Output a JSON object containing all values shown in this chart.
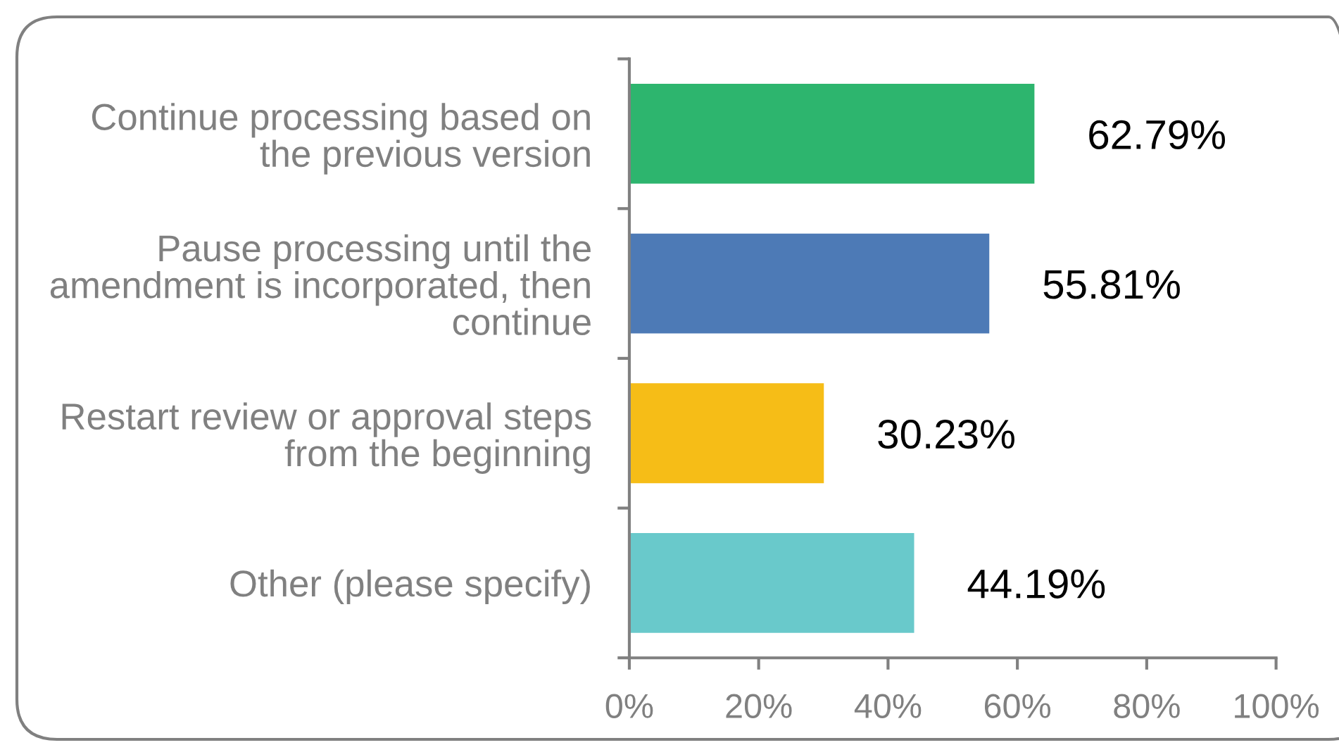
{
  "chart_data": {
    "type": "bar",
    "orientation": "horizontal",
    "categories": [
      "Continue processing based on\nthe previous version",
      "Pause processing until the\namendment is incorporated, then\ncontinue",
      "Restart review or approval steps\nfrom the beginning",
      "Other (please specify)"
    ],
    "values": [
      62.79,
      55.81,
      30.23,
      44.19
    ],
    "colors": [
      "#2db56e",
      "#4d7ab6",
      "#f6bd17",
      "#69c9cb"
    ],
    "value_labels": [
      "62.79%",
      "55.81%",
      "30.23%",
      "44.19%"
    ],
    "xlim": [
      0,
      100
    ],
    "xticks": [
      {
        "value": 0,
        "label": "0%"
      },
      {
        "value": 20,
        "label": "20%"
      },
      {
        "value": 40,
        "label": "40%"
      },
      {
        "value": 60,
        "label": "60%"
      },
      {
        "value": 80,
        "label": "80%"
      },
      {
        "value": 100,
        "label": "100%"
      }
    ],
    "grid": false
  }
}
